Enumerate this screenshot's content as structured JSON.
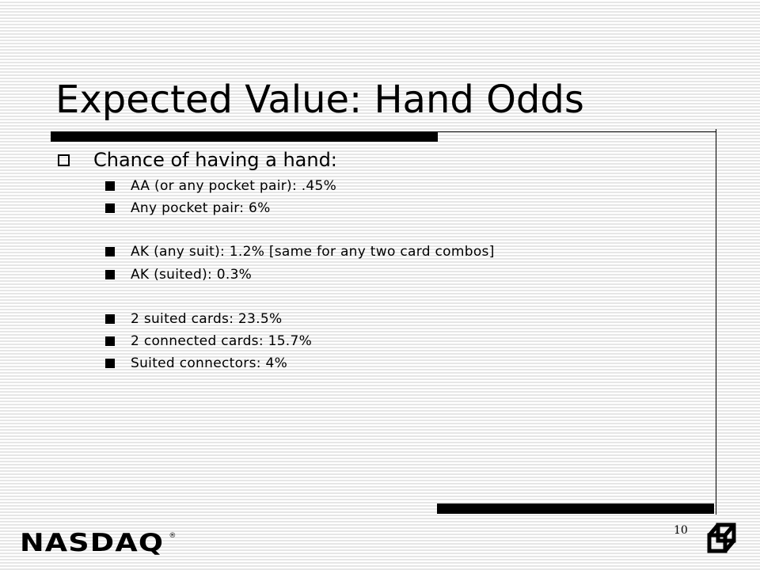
{
  "slide": {
    "title": "Expected Value: Hand Odds",
    "heading": "Chance of having a hand:",
    "items": [
      "AA (or any pocket pair): .45%",
      "Any pocket pair: 6%",
      "AK (any suit): 1.2% [same for any two card combos]",
      "AK (suited): 0.3%",
      "2 suited cards: 23.5%",
      "2 connected cards: 15.7%",
      "Suited connectors: 4%"
    ],
    "page_number": "10"
  },
  "footer": {
    "logo_text": "NASDAQ",
    "logo_mark": "®",
    "cube_icon": "nasdaq-cube-icon"
  }
}
